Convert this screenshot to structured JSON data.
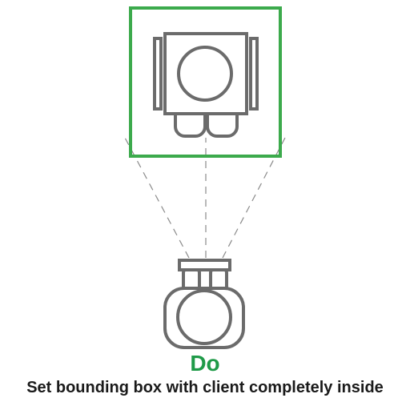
{
  "verdict": "Do",
  "instruction": "Set bounding box with client completely inside",
  "colors": {
    "box": "#3caa4c",
    "verdict": "#1f9a48",
    "stroke": "#6b6b6b",
    "dash": "#8a8a8a"
  }
}
